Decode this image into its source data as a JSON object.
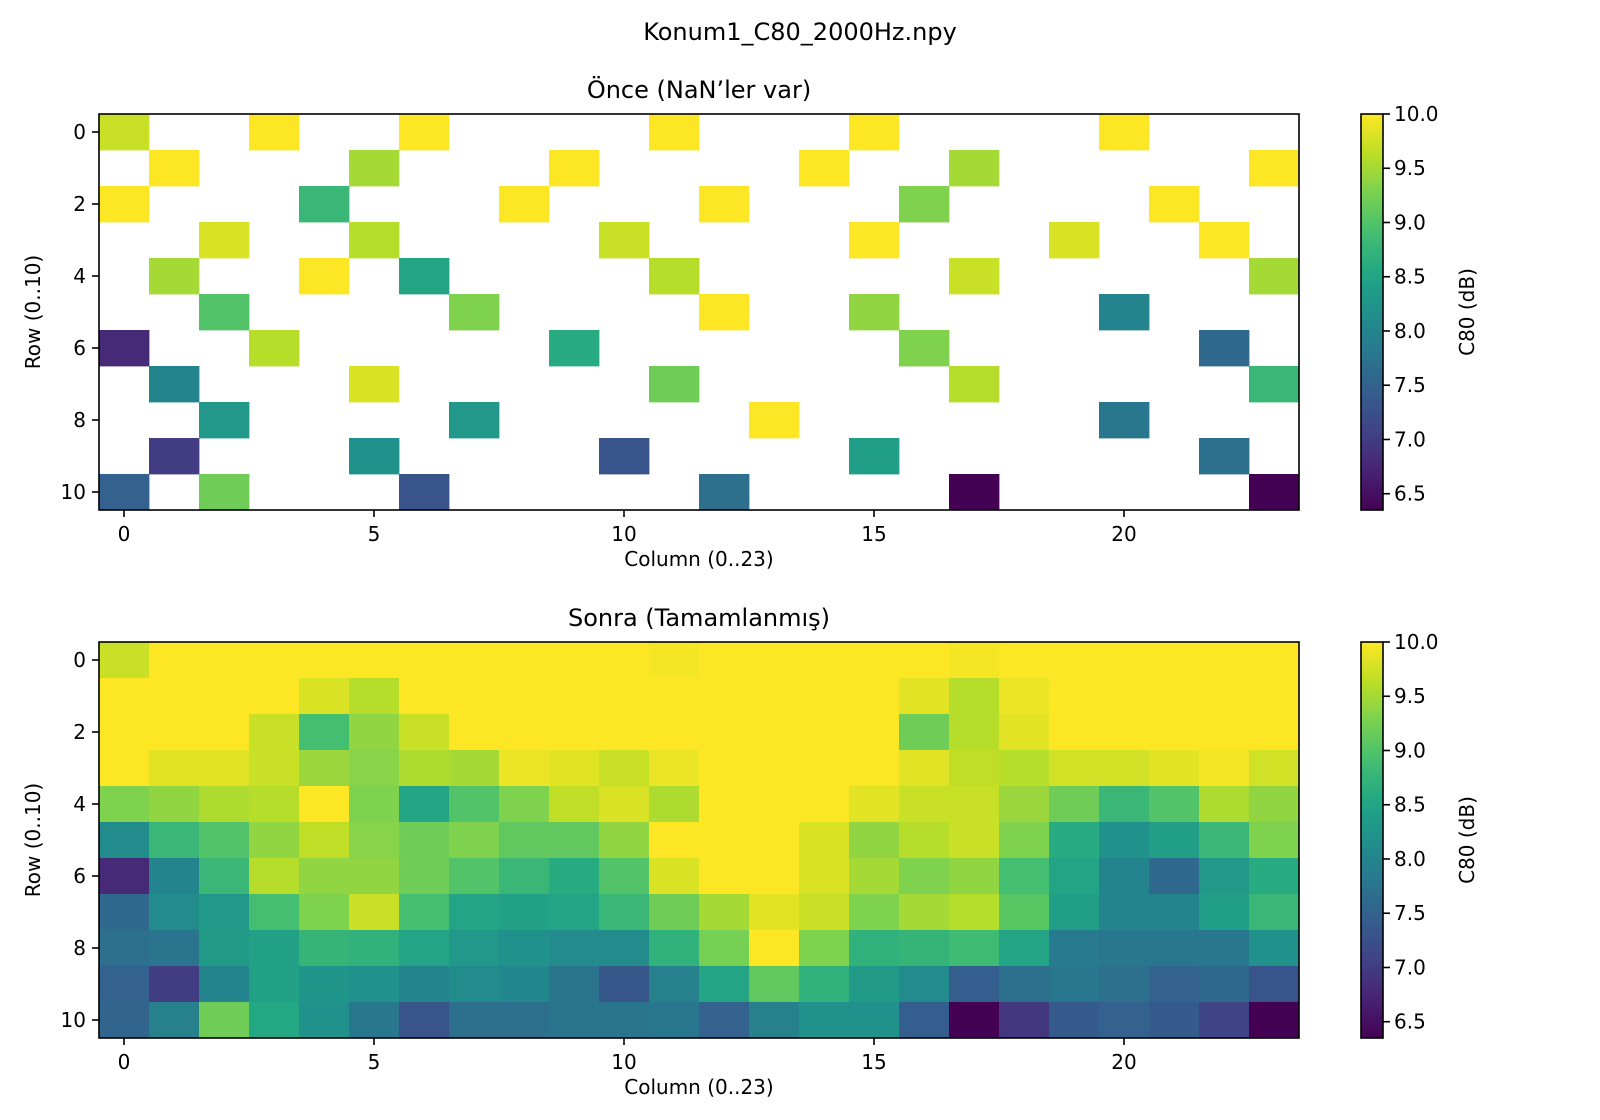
{
  "chart_data": {
    "suptitle": "Konum1_C80_2000Hz.npy",
    "type": "heatmap",
    "colormap": "viridis",
    "vmin": 6.35,
    "vmax": 10.0,
    "n_rows": 11,
    "n_cols": 24,
    "panels": [
      {
        "title": "Önce (NaN’ler var)",
        "xlabel": "Column (0..23)",
        "ylabel": "Row (0..10)",
        "xticks": [
          "0",
          "5",
          "10",
          "15",
          "20"
        ],
        "yticks": [
          "0",
          "2",
          "4",
          "6",
          "8",
          "10"
        ],
        "colorbar_label": "C80 (dB)",
        "colorbar_ticks": [
          "10.0",
          "9.5",
          "9.0",
          "8.5",
          "8.0",
          "7.5",
          "7.0",
          "6.5"
        ],
        "values": [
          [
            9.7,
            null,
            null,
            10.0,
            null,
            null,
            10.0,
            null,
            null,
            null,
            null,
            10.0,
            null,
            null,
            null,
            10.0,
            null,
            null,
            null,
            null,
            10.0,
            null,
            null,
            null
          ],
          [
            null,
            10.0,
            null,
            null,
            null,
            9.5,
            null,
            null,
            null,
            10.0,
            null,
            null,
            null,
            null,
            10.0,
            null,
            null,
            9.5,
            null,
            null,
            null,
            null,
            null,
            10.0
          ],
          [
            10.0,
            null,
            null,
            null,
            8.8,
            null,
            null,
            null,
            10.0,
            null,
            null,
            null,
            10.0,
            null,
            null,
            null,
            9.3,
            null,
            null,
            null,
            null,
            10.0,
            null,
            null
          ],
          [
            null,
            null,
            9.8,
            null,
            null,
            9.6,
            null,
            null,
            null,
            null,
            9.7,
            null,
            null,
            null,
            null,
            10.0,
            null,
            null,
            null,
            9.8,
            null,
            null,
            10.0,
            null
          ],
          [
            null,
            9.5,
            null,
            null,
            10.0,
            null,
            8.5,
            null,
            null,
            null,
            null,
            9.6,
            null,
            null,
            null,
            null,
            null,
            9.7,
            null,
            null,
            null,
            null,
            null,
            9.5
          ],
          [
            null,
            null,
            9.0,
            null,
            null,
            null,
            null,
            9.3,
            null,
            null,
            null,
            null,
            10.0,
            null,
            null,
            9.4,
            null,
            null,
            null,
            null,
            8.0,
            null,
            null,
            null
          ],
          [
            6.8,
            null,
            null,
            9.6,
            null,
            null,
            null,
            null,
            null,
            8.6,
            null,
            null,
            null,
            null,
            null,
            null,
            9.3,
            null,
            null,
            null,
            null,
            null,
            7.6,
            null
          ],
          [
            null,
            8.0,
            null,
            null,
            null,
            9.8,
            null,
            null,
            null,
            null,
            null,
            9.2,
            null,
            null,
            null,
            null,
            null,
            9.6,
            null,
            null,
            null,
            null,
            null,
            8.8
          ],
          [
            null,
            null,
            8.3,
            null,
            null,
            null,
            null,
            8.3,
            null,
            null,
            null,
            null,
            null,
            10.0,
            null,
            null,
            null,
            null,
            null,
            null,
            7.8,
            null,
            null,
            null
          ],
          [
            null,
            7.0,
            null,
            null,
            null,
            8.2,
            null,
            null,
            null,
            null,
            7.3,
            null,
            null,
            null,
            null,
            8.4,
            null,
            null,
            null,
            null,
            null,
            null,
            7.7,
            null
          ],
          [
            7.5,
            null,
            9.2,
            null,
            null,
            null,
            7.3,
            null,
            null,
            null,
            null,
            null,
            7.7,
            null,
            null,
            null,
            null,
            6.35,
            null,
            null,
            null,
            null,
            null,
            6.35
          ]
        ]
      },
      {
        "title": "Sonra (Tamamlanmış)",
        "xlabel": "Column (0..23)",
        "ylabel": "Row (0..10)",
        "xticks": [
          "0",
          "5",
          "10",
          "15",
          "20"
        ],
        "yticks": [
          "0",
          "2",
          "4",
          "6",
          "8",
          "10"
        ],
        "colorbar_label": "C80 (dB)",
        "colorbar_ticks": [
          "10.0",
          "9.5",
          "9.0",
          "8.5",
          "8.0",
          "7.5",
          "7.0",
          "6.5"
        ],
        "values": [
          [
            9.7,
            10.0,
            10.0,
            10.0,
            10.0,
            10.0,
            10.0,
            10.0,
            10.0,
            10.0,
            10.0,
            9.95,
            10.0,
            10.0,
            10.0,
            10.0,
            10.0,
            9.95,
            10.0,
            10.0,
            10.0,
            10.0,
            10.0,
            10.0
          ],
          [
            10.0,
            10.0,
            10.0,
            10.0,
            9.8,
            9.6,
            10.0,
            10.0,
            10.0,
            10.0,
            10.0,
            10.0,
            10.0,
            10.0,
            10.0,
            10.0,
            9.85,
            9.6,
            9.9,
            10.0,
            10.0,
            10.0,
            10.0,
            10.0
          ],
          [
            10.0,
            10.0,
            10.0,
            9.7,
            8.9,
            9.4,
            9.7,
            10.0,
            10.0,
            10.0,
            10.0,
            10.0,
            10.0,
            10.0,
            10.0,
            10.0,
            9.2,
            9.6,
            9.85,
            10.0,
            10.0,
            10.0,
            10.0,
            10.0
          ],
          [
            10.0,
            9.85,
            9.85,
            9.7,
            9.45,
            9.35,
            9.55,
            9.5,
            9.9,
            9.85,
            9.7,
            9.9,
            10.0,
            10.0,
            10.0,
            10.0,
            9.85,
            9.65,
            9.6,
            9.75,
            9.75,
            9.85,
            9.95,
            9.75
          ],
          [
            9.3,
            9.4,
            9.55,
            9.6,
            10.0,
            9.3,
            8.5,
            9.0,
            9.3,
            9.65,
            9.8,
            9.55,
            10.0,
            10.0,
            10.0,
            9.85,
            9.7,
            9.7,
            9.45,
            9.2,
            8.8,
            9.0,
            9.55,
            9.4
          ],
          [
            8.1,
            8.8,
            9.0,
            9.4,
            9.65,
            9.35,
            9.2,
            9.3,
            9.1,
            9.1,
            9.4,
            10.0,
            10.0,
            10.0,
            9.8,
            9.4,
            9.6,
            9.7,
            9.3,
            8.6,
            8.2,
            8.4,
            8.8,
            9.3
          ],
          [
            6.8,
            8.0,
            8.8,
            9.6,
            9.4,
            9.4,
            9.2,
            9.0,
            8.8,
            8.6,
            9.0,
            9.8,
            10.0,
            10.0,
            9.8,
            9.5,
            9.3,
            9.4,
            8.9,
            8.5,
            8.0,
            7.6,
            8.3,
            8.6
          ],
          [
            7.6,
            8.1,
            8.3,
            8.9,
            9.3,
            9.7,
            8.9,
            8.5,
            8.45,
            8.5,
            8.8,
            9.2,
            9.5,
            9.85,
            9.7,
            9.3,
            9.5,
            9.6,
            9.05,
            8.4,
            8.0,
            8.0,
            8.4,
            8.8
          ],
          [
            7.7,
            7.75,
            8.35,
            8.45,
            8.75,
            8.7,
            8.5,
            8.3,
            8.2,
            8.1,
            8.1,
            8.7,
            9.25,
            10.0,
            9.3,
            8.7,
            8.75,
            8.85,
            8.5,
            7.85,
            7.8,
            7.8,
            7.8,
            8.2
          ],
          [
            7.5,
            7.0,
            8.0,
            8.45,
            8.25,
            8.2,
            8.0,
            8.1,
            8.05,
            7.75,
            7.35,
            7.95,
            8.5,
            9.1,
            8.7,
            8.35,
            8.1,
            7.45,
            7.7,
            7.8,
            7.7,
            7.5,
            7.6,
            7.3
          ],
          [
            7.55,
            7.95,
            9.2,
            8.55,
            8.2,
            7.8,
            7.3,
            7.7,
            7.7,
            7.75,
            7.75,
            7.8,
            7.5,
            7.95,
            8.2,
            8.2,
            7.45,
            6.35,
            6.95,
            7.4,
            7.5,
            7.4,
            7.1,
            6.35
          ]
        ]
      }
    ]
  }
}
